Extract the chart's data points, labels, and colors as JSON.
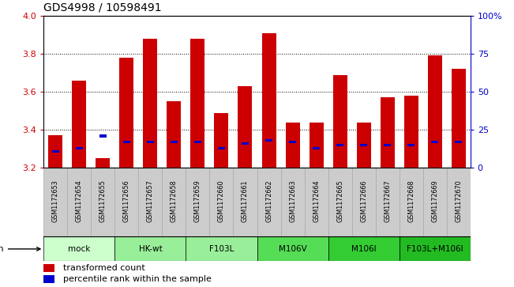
{
  "title": "GDS4998 / 10598491",
  "samples": [
    "GSM1172653",
    "GSM1172654",
    "GSM1172655",
    "GSM1172656",
    "GSM1172657",
    "GSM1172658",
    "GSM1172659",
    "GSM1172660",
    "GSM1172661",
    "GSM1172662",
    "GSM1172663",
    "GSM1172664",
    "GSM1172665",
    "GSM1172666",
    "GSM1172667",
    "GSM1172668",
    "GSM1172669",
    "GSM1172670"
  ],
  "transformed_counts": [
    3.37,
    3.66,
    3.25,
    3.78,
    3.88,
    3.55,
    3.88,
    3.49,
    3.63,
    3.91,
    3.44,
    3.44,
    3.69,
    3.44,
    3.57,
    3.58,
    3.79,
    3.72
  ],
  "percentile_ranks_pct": [
    11,
    13,
    21,
    17,
    17,
    17,
    17,
    13,
    16,
    18,
    17,
    13,
    15,
    15,
    15,
    15,
    17,
    17
  ],
  "bar_base": 3.2,
  "ylim_left": [
    3.2,
    4.0
  ],
  "yticks_left": [
    3.2,
    3.4,
    3.6,
    3.8,
    4.0
  ],
  "yticks_right": [
    0,
    25,
    50,
    75,
    100
  ],
  "ytick_labels_right": [
    "0",
    "25",
    "50",
    "75",
    "100%"
  ],
  "groups": [
    {
      "label": "mock",
      "start": 0,
      "end": 3,
      "color": "#ccffcc"
    },
    {
      "label": "HK-wt",
      "start": 3,
      "end": 6,
      "color": "#99ee99"
    },
    {
      "label": "F103L",
      "start": 6,
      "end": 9,
      "color": "#99ee99"
    },
    {
      "label": "M106V",
      "start": 9,
      "end": 12,
      "color": "#55dd55"
    },
    {
      "label": "M106I",
      "start": 12,
      "end": 15,
      "color": "#33cc33"
    },
    {
      "label": "F103L+M106I",
      "start": 15,
      "end": 18,
      "color": "#22bb22"
    }
  ],
  "bar_color": "#cc0000",
  "percentile_color": "#0000cc",
  "background_color": "#ffffff",
  "tick_color_left": "#cc0000",
  "tick_color_right": "#0000cc",
  "cell_color": "#cccccc",
  "cell_edge_color": "#aaaaaa"
}
